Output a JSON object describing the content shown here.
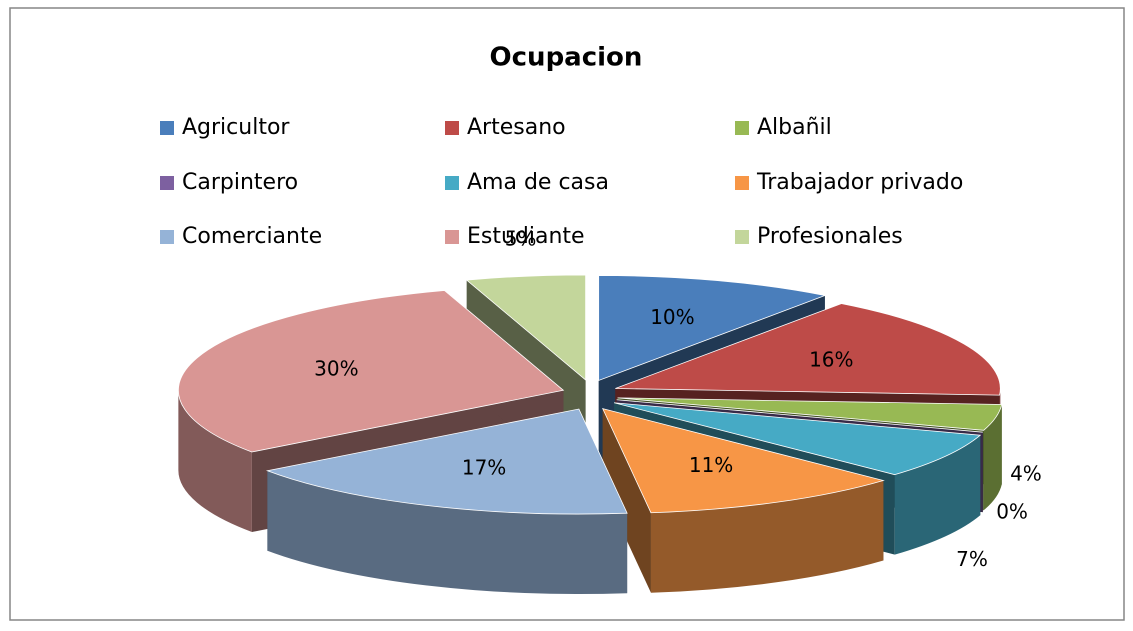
{
  "chart_data": {
    "type": "pie3d",
    "title": "Ocupacion",
    "categories": [
      "Agricultor",
      "Artesano",
      "Albañil",
      "Carpintero",
      "Ama de casa",
      "Trabajador privado",
      "Comerciante",
      "Estudiante",
      "Profesionales"
    ],
    "values": [
      10,
      16,
      4,
      0,
      7,
      11,
      17,
      30,
      5
    ],
    "value_labels": [
      "10%",
      "16%",
      "4%",
      "0%",
      "7%",
      "11%",
      "17%",
      "30%",
      "5%"
    ],
    "colors": [
      "#4a7ebb",
      "#be4b48",
      "#98b954",
      "#7d60a0",
      "#46aac5",
      "#f79646",
      "#95b3d7",
      "#d99694",
      "#c3d69b"
    ]
  }
}
